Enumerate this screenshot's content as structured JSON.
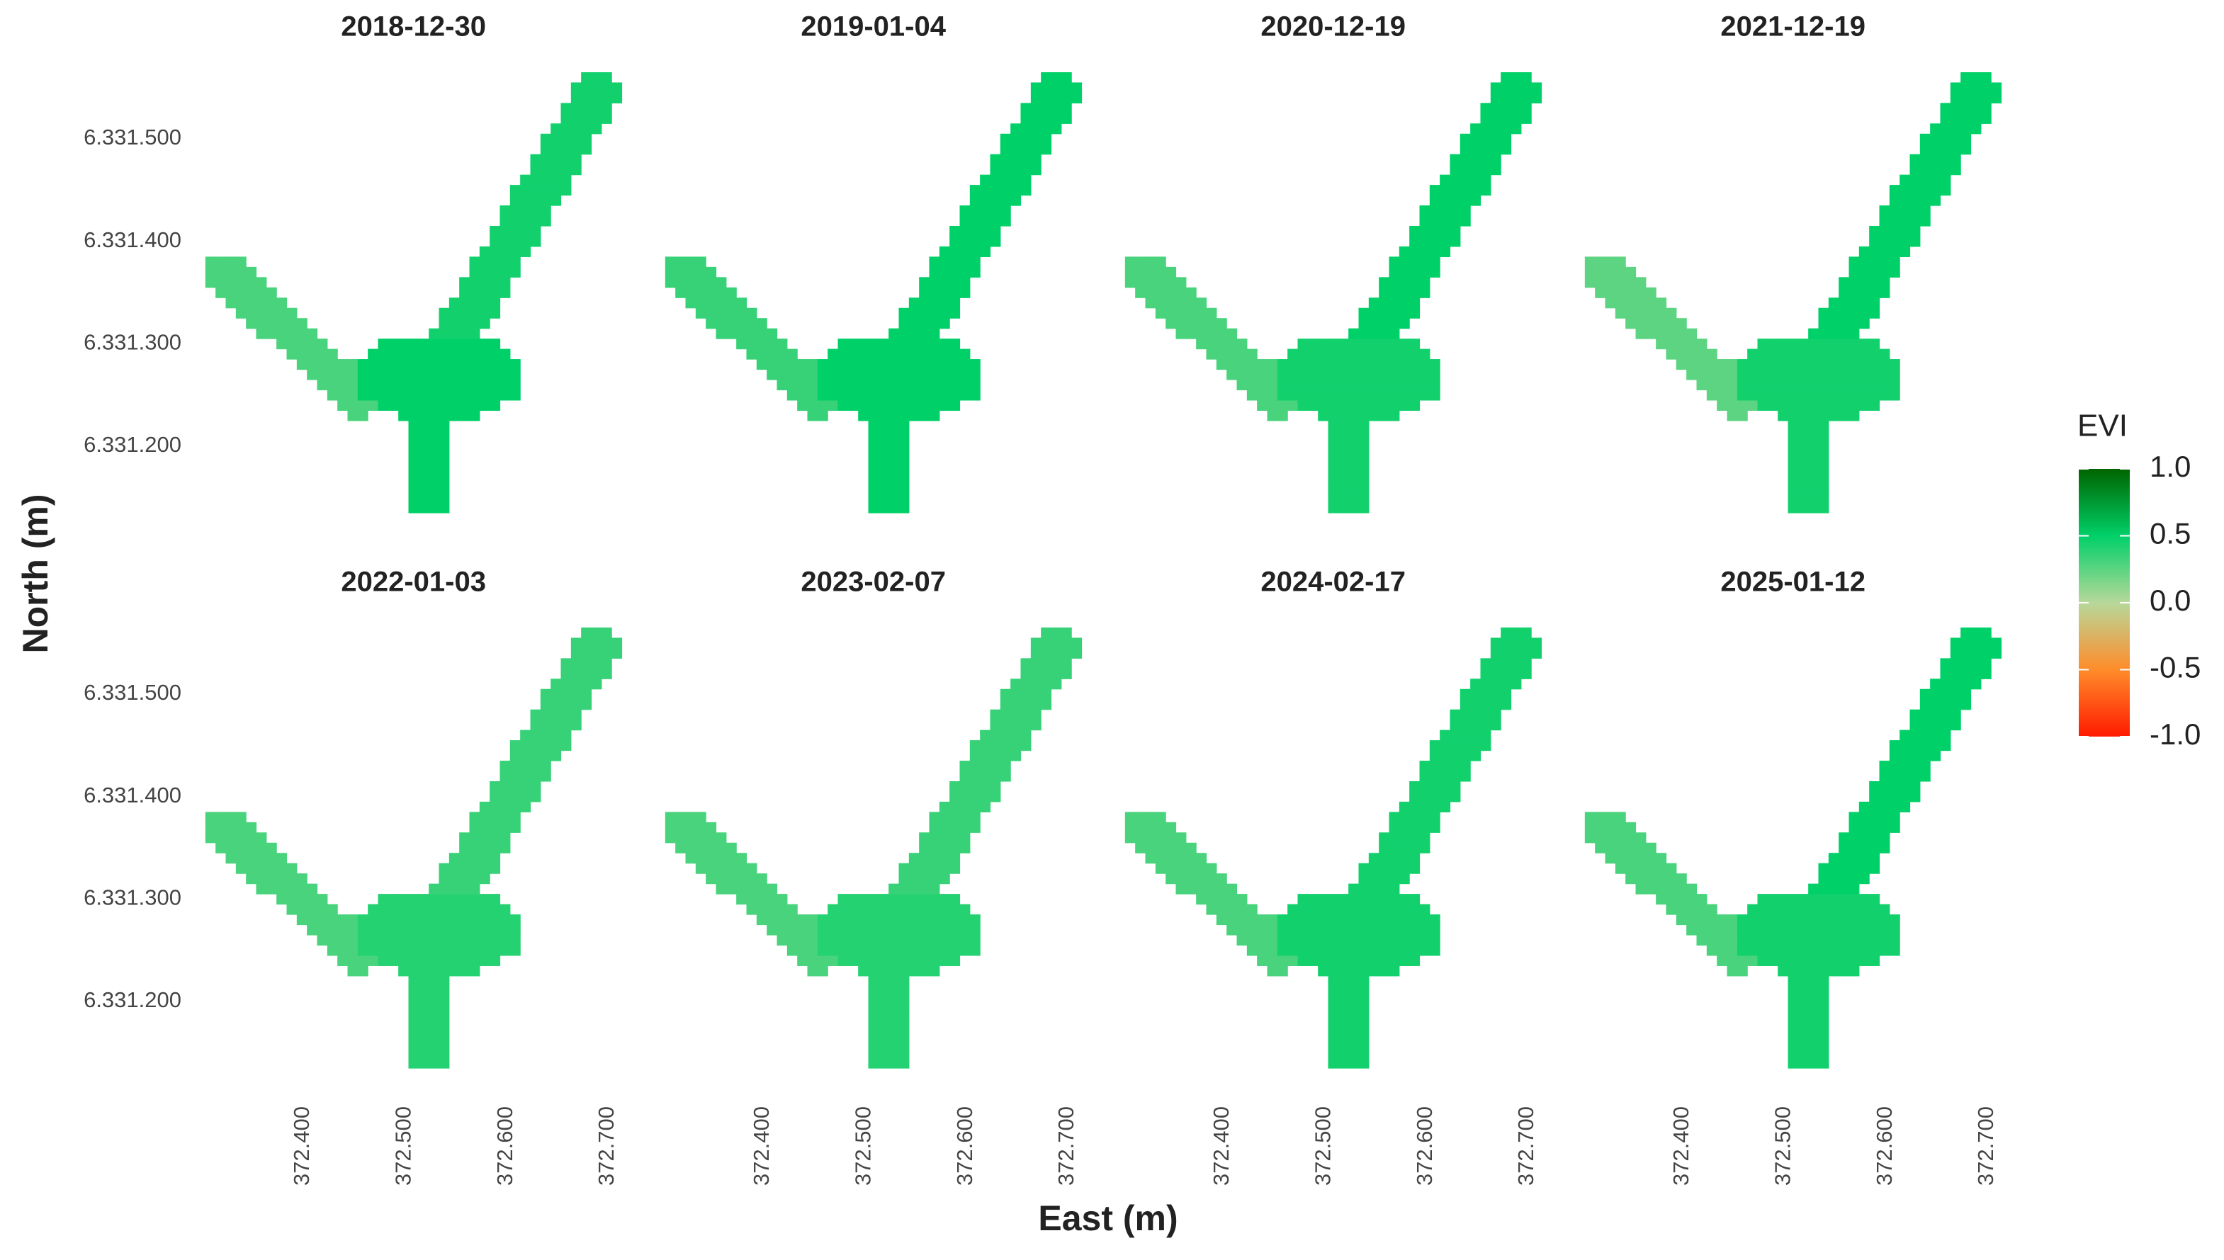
{
  "chart_data": {
    "type": "raster",
    "xlabel": "East (m)",
    "ylabel": "North (m)",
    "legend_title": "EVI",
    "xlim": [
      372300,
      372720
    ],
    "ylim": [
      6331130,
      6331570
    ],
    "xticks": [
      {
        "value": 372400,
        "label": "372.400"
      },
      {
        "value": 372500,
        "label": "372.500"
      },
      {
        "value": 372600,
        "label": "372.600"
      },
      {
        "value": 372700,
        "label": "372.700"
      }
    ],
    "yticks": [
      {
        "value": 6331200,
        "label": "6.331.200"
      },
      {
        "value": 6331300,
        "label": "6.331.300"
      },
      {
        "value": 6331400,
        "label": "6.331.400"
      },
      {
        "value": 6331500,
        "label": "6.331.500"
      }
    ],
    "clim": [
      -1,
      1
    ],
    "cticks": [
      {
        "value": 1,
        "label": "1.0"
      },
      0.5,
      {
        "value": 0,
        "label": "0.0"
      },
      -0.5,
      {
        "value": -1,
        "label": "-1.0"
      }
    ],
    "colors": [
      "#ff1a00",
      "#ff8c2a",
      "#b7d89a",
      "#00d068",
      "#006400"
    ],
    "facets": [
      {
        "title": "2018-12-30",
        "values": [
          0.3,
          0.5,
          0.45
        ]
      },
      {
        "title": "2019-01-04",
        "values": [
          0.35,
          0.5,
          0.5
        ]
      },
      {
        "title": "2020-12-19",
        "values": [
          0.3,
          0.45,
          0.5
        ]
      },
      {
        "title": "2021-12-19",
        "values": [
          0.25,
          0.45,
          0.5
        ]
      },
      {
        "title": "2022-01-03",
        "values": [
          0.3,
          0.4,
          0.35
        ]
      },
      {
        "title": "2023-02-07",
        "values": [
          0.3,
          0.4,
          0.35
        ]
      },
      {
        "title": "2024-02-17",
        "values": [
          0.3,
          0.45,
          0.45
        ]
      },
      {
        "title": "2025-01-12",
        "values": [
          0.3,
          0.45,
          0.5
        ]
      }
    ]
  }
}
